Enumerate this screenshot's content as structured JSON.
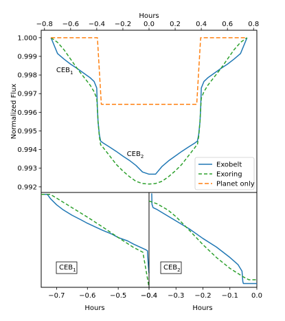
{
  "colors": {
    "exobelt": "#1f77b4",
    "exoring": "#2ca02c",
    "planet": "#ff7f0e"
  },
  "chart_data": [
    {
      "id": "main",
      "type": "line",
      "x_label": "Hours",
      "x_axis_position": "top",
      "y_label": "Normalized Flux",
      "x_ticks": [
        "−0.8",
        "−0.6",
        "−0.4",
        "−0.2",
        "0.0",
        "0.2",
        "0.4",
        "0.6",
        "0.8"
      ],
      "y_ticks": [
        "0.992",
        "0.993",
        "0.994",
        "0.995",
        "0.996",
        "0.997",
        "0.998",
        "0.999",
        "1.000"
      ],
      "xlim": [
        -0.825,
        0.825
      ],
      "ylim": [
        0.9917,
        1.0004
      ],
      "legend": {
        "position": "lower-right",
        "entries": [
          "Exobelt",
          "Exoring",
          "Planet only"
        ]
      },
      "annotations": [
        {
          "base": "CEB",
          "sub": "1",
          "x": -0.71,
          "y": 0.99815
        },
        {
          "base": "CEB",
          "sub": "2",
          "x": -0.17,
          "y": 0.99365
        }
      ],
      "series": [
        {
          "name": "Exobelt",
          "style": "solid",
          "x": [
            -0.75,
            -0.7,
            -0.65,
            -0.6,
            -0.55,
            -0.5,
            -0.45,
            -0.42,
            -0.4,
            -0.395,
            -0.39,
            -0.38,
            -0.37,
            -0.36,
            -0.35,
            -0.3,
            -0.25,
            -0.2,
            -0.15,
            -0.1,
            -0.05,
            0.0,
            0.05,
            0.1,
            0.15,
            0.2,
            0.25,
            0.3,
            0.35,
            0.36,
            0.37,
            0.38,
            0.39,
            0.395,
            0.4,
            0.42,
            0.45,
            0.5,
            0.55,
            0.6,
            0.65,
            0.7,
            0.75
          ],
          "y": [
            1.0,
            0.99915,
            0.99885,
            0.99858,
            0.99835,
            0.9981,
            0.99785,
            0.99765,
            0.9973,
            0.9962,
            0.9955,
            0.9948,
            0.99445,
            0.9944,
            0.99435,
            0.99413,
            0.9939,
            0.99365,
            0.99342,
            0.99315,
            0.9928,
            0.99268,
            0.99268,
            0.9931,
            0.9934,
            0.99365,
            0.9939,
            0.99413,
            0.99435,
            0.9944,
            0.99445,
            0.9948,
            0.9955,
            0.9962,
            0.9973,
            0.99765,
            0.99785,
            0.9981,
            0.99835,
            0.99858,
            0.99885,
            0.99915,
            1.0
          ]
        },
        {
          "name": "Exoring",
          "style": "dashed",
          "x": [
            -0.75,
            -0.7,
            -0.65,
            -0.6,
            -0.55,
            -0.5,
            -0.45,
            -0.42,
            -0.4,
            -0.395,
            -0.39,
            -0.38,
            -0.37,
            -0.36,
            -0.35,
            -0.3,
            -0.25,
            -0.2,
            -0.15,
            -0.1,
            -0.05,
            0.0,
            0.05,
            0.1,
            0.15,
            0.2,
            0.25,
            0.3,
            0.35,
            0.36,
            0.37,
            0.38,
            0.39,
            0.395,
            0.4,
            0.42,
            0.45,
            0.5,
            0.55,
            0.6,
            0.65,
            0.7,
            0.75
          ],
          "y": [
            1.0,
            0.99975,
            0.99935,
            0.99885,
            0.99835,
            0.9979,
            0.99745,
            0.9971,
            0.99675,
            0.9962,
            0.9955,
            0.9947,
            0.99425,
            0.9942,
            0.9941,
            0.99365,
            0.9932,
            0.99285,
            0.99255,
            0.9923,
            0.99218,
            0.99215,
            0.99218,
            0.9923,
            0.99255,
            0.99285,
            0.9932,
            0.99365,
            0.9941,
            0.9942,
            0.99425,
            0.9947,
            0.9955,
            0.9962,
            0.99675,
            0.9971,
            0.99745,
            0.9979,
            0.99835,
            0.99885,
            0.99935,
            0.99975,
            1.0
          ]
        },
        {
          "name": "Planet only",
          "style": "dashed",
          "x": [
            -0.75,
            -0.395,
            -0.365,
            0.365,
            0.395,
            0.75
          ],
          "y": [
            1.0,
            1.0,
            0.99643,
            0.99643,
            1.0,
            1.0
          ]
        }
      ]
    },
    {
      "id": "ceb1",
      "type": "line",
      "x_label": "Hours",
      "x_ticks": [
        "−0.7",
        "−0.6",
        "−0.5",
        "−0.4"
      ],
      "xlim": [
        -0.75,
        -0.4
      ],
      "ylim": [
        0.0,
        1.0
      ],
      "annotation": {
        "base": "CEB",
        "sub": "1"
      },
      "series": [
        {
          "name": "Exobelt",
          "style": "solid",
          "x": [
            -0.75,
            -0.73,
            -0.72,
            -0.7,
            -0.68,
            -0.65,
            -0.62,
            -0.6,
            -0.57,
            -0.55,
            -0.52,
            -0.5,
            -0.47,
            -0.45,
            -0.43,
            -0.41,
            -0.405,
            -0.404,
            -0.402,
            -0.4
          ],
          "y": [
            0.98,
            0.98,
            0.935,
            0.87,
            0.82,
            0.76,
            0.71,
            0.675,
            0.63,
            0.6,
            0.56,
            0.525,
            0.49,
            0.455,
            0.425,
            0.395,
            0.385,
            0.32,
            0.22,
            0.15
          ]
        },
        {
          "name": "Exoring",
          "style": "dashed",
          "x": [
            -0.75,
            -0.72,
            -0.7,
            -0.65,
            -0.6,
            -0.55,
            -0.5,
            -0.45,
            -0.42,
            -0.4
          ],
          "y": [
            0.98,
            0.98,
            0.94,
            0.84,
            0.74,
            0.635,
            0.525,
            0.42,
            0.37,
            0.0
          ]
        }
      ]
    },
    {
      "id": "ceb2",
      "type": "line",
      "x_label": "Hours",
      "x_ticks": [
        "−0.4",
        "−0.3",
        "−0.2",
        "−0.1",
        "0.0"
      ],
      "xlim": [
        -0.4,
        0.0
      ],
      "ylim": [
        0.0,
        1.0
      ],
      "annotation": {
        "base": "CEB",
        "sub": "2"
      },
      "series": [
        {
          "name": "Exobelt",
          "style": "solid",
          "x": [
            -0.39,
            -0.389,
            -0.385,
            -0.37,
            -0.35,
            -0.3,
            -0.25,
            -0.2,
            -0.15,
            -0.1,
            -0.07,
            -0.055,
            -0.052,
            -0.05,
            -0.03,
            0.0
          ],
          "y": [
            0.99,
            0.875,
            0.84,
            0.82,
            0.785,
            0.7,
            0.615,
            0.515,
            0.425,
            0.315,
            0.24,
            0.17,
            0.06,
            0.04,
            0.04,
            0.04
          ]
        },
        {
          "name": "Exoring",
          "style": "dashed",
          "x": [
            -0.4,
            -0.37,
            -0.33,
            -0.3,
            -0.25,
            -0.2,
            -0.15,
            -0.1,
            -0.05,
            -0.03,
            0.0
          ],
          "y": [
            0.91,
            0.88,
            0.815,
            0.745,
            0.6,
            0.45,
            0.315,
            0.2,
            0.11,
            0.08,
            0.08
          ]
        }
      ]
    }
  ]
}
